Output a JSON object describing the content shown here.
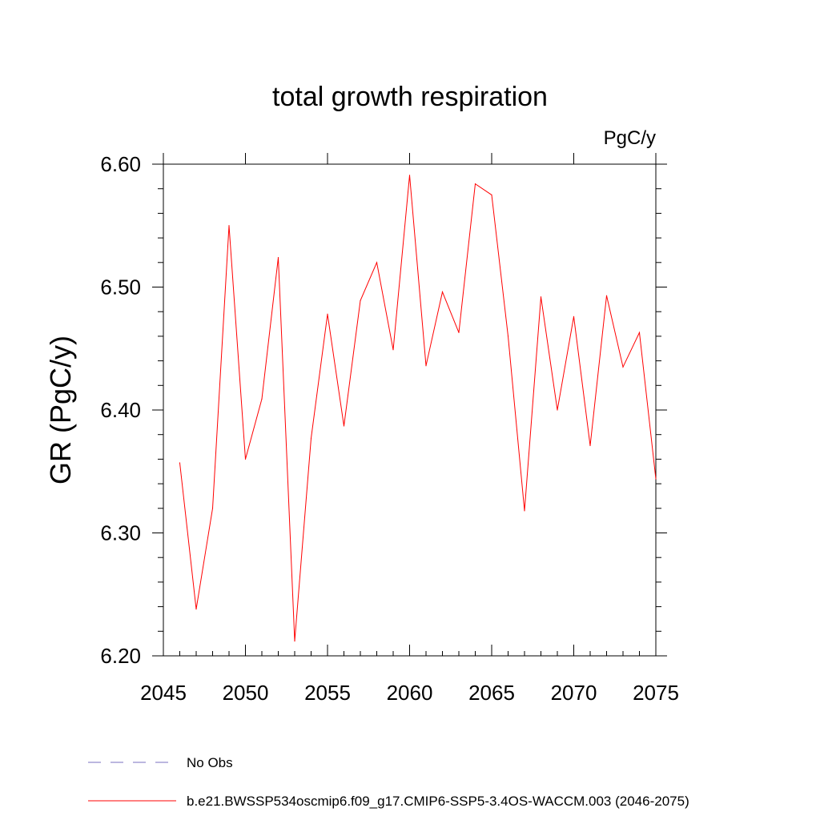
{
  "chart_data": {
    "type": "line",
    "title": "total growth respiration",
    "units_label": "PgC/y",
    "xlabel": "",
    "ylabel": "GR  (PgC/y)",
    "xlim": [
      2045,
      2075
    ],
    "ylim": [
      6.2,
      6.6
    ],
    "x_ticks": [
      2045,
      2050,
      2055,
      2060,
      2065,
      2070,
      2075
    ],
    "x_tick_labels": [
      "2045",
      "2050",
      "2055",
      "2060",
      "2065",
      "2070",
      "2075"
    ],
    "y_ticks": [
      6.2,
      6.3,
      6.4,
      6.5,
      6.6
    ],
    "y_tick_labels": [
      "6.20",
      "6.30",
      "6.40",
      "6.50",
      "6.60"
    ],
    "series": [
      {
        "name": "b.e21.BWSSP534oscmip6.f09_g17.CMIP6-SSP5-3.4OS-WACCM.003 (2046-2075)",
        "color": "#ff0000",
        "x": [
          2046,
          2047,
          2048,
          2049,
          2050,
          2051,
          2052,
          2053,
          2054,
          2055,
          2056,
          2057,
          2058,
          2059,
          2060,
          2061,
          2062,
          2063,
          2064,
          2065,
          2066,
          2067,
          2068,
          2069,
          2070,
          2071,
          2072,
          2073,
          2074,
          2075
        ],
        "values": [
          6.357,
          6.238,
          6.32,
          6.55,
          6.36,
          6.409,
          6.524,
          6.212,
          6.377,
          6.478,
          6.387,
          6.489,
          6.52,
          6.449,
          6.591,
          6.436,
          6.496,
          6.463,
          6.584,
          6.575,
          6.46,
          6.318,
          6.492,
          6.4,
          6.476,
          6.371,
          6.493,
          6.435,
          6.463,
          6.344
        ]
      }
    ],
    "legend": [
      {
        "label": "No Obs",
        "style": "dashed",
        "color": "#7a6fc0"
      },
      {
        "label": "b.e21.BWSSP534oscmip6.f09_g17.CMIP6-SSP5-3.4OS-WACCM.003 (2046-2075)",
        "style": "solid",
        "color": "#ff0000"
      }
    ],
    "legend_position": "bottom-left"
  }
}
